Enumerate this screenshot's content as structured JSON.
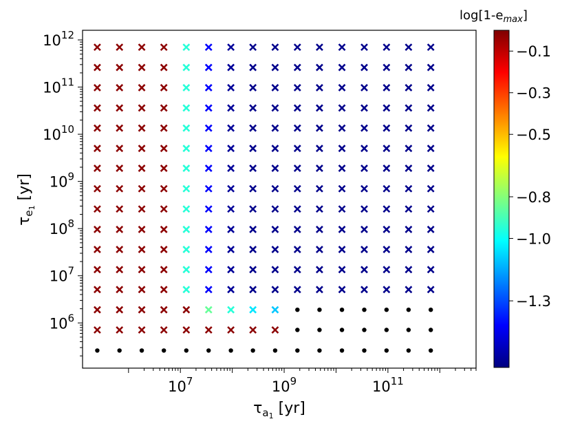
{
  "chart_data": {
    "type": "scatter",
    "xscale": "log",
    "yscale": "log",
    "xlabel": {
      "base": "τ",
      "sub_letter": "a",
      "sub_index": "1",
      "unit": "[yr]"
    },
    "ylabel": {
      "base": "τ",
      "sub_letter": "e",
      "sub_index": "1",
      "unit": "[yr]"
    },
    "xlim": [
      130000.0,
      5000000000000.0
    ],
    "ylim": [
      110000.0,
      1600000000000.0
    ],
    "x_ticks": [
      {
        "value": 10000000.0,
        "base": "10",
        "exp": "7"
      },
      {
        "value": 1000000000.0,
        "base": "10",
        "exp": "9"
      },
      {
        "value": 100000000000.0,
        "base": "10",
        "exp": "11"
      }
    ],
    "y_ticks": [
      {
        "value": 1000000.0,
        "base": "10",
        "exp": "6"
      },
      {
        "value": 10000000.0,
        "base": "10",
        "exp": "7"
      },
      {
        "value": 100000000.0,
        "base": "10",
        "exp": "8"
      },
      {
        "value": 1000000000.0,
        "base": "10",
        "exp": "9"
      },
      {
        "value": 10000000000.0,
        "base": "10",
        "exp": "10"
      },
      {
        "value": 100000000000.0,
        "base": "10",
        "exp": "11"
      },
      {
        "value": 1000000000000.0,
        "base": "10",
        "exp": "12"
      }
    ],
    "x": [
      250000.0,
      670000.0,
      1800000.0,
      4800000.0,
      13000000.0,
      35000000.0,
      94000000.0,
      250000000.0,
      670000000.0,
      1800000000.0,
      4800000000.0,
      13000000000.0,
      35000000000.0,
      94000000000.0,
      250000000000.0,
      670000000000.0
    ],
    "y": [
      260000.0,
      710000.0,
      1900000.0,
      5100000.0,
      13500000.0,
      36000000.0,
      96000000.0,
      260000000.0,
      700000000.0,
      1900000000.0,
      5000000000.0,
      13500000000.0,
      36000000000.0,
      97000000000.0,
      260000000000.0,
      700000000000.0
    ],
    "z_rows": [
      [
        "dot",
        "dot",
        "dot",
        "dot",
        "dot",
        "dot",
        "dot",
        "dot",
        "dot",
        "dot",
        "dot",
        "dot",
        "dot",
        "dot",
        "dot",
        "dot"
      ],
      [
        -0.02,
        -0.02,
        -0.02,
        -0.02,
        -0.02,
        -0.02,
        -0.02,
        -0.02,
        -0.02,
        "dot",
        "dot",
        "dot",
        "dot",
        "dot",
        "dot",
        "dot"
      ],
      [
        -0.02,
        -0.02,
        -0.02,
        -0.02,
        -0.02,
        -0.85,
        -0.95,
        -1.05,
        -1.1,
        "dot",
        "dot",
        "dot",
        "dot",
        "dot",
        "dot",
        "dot"
      ],
      [
        -0.02,
        -0.02,
        -0.02,
        -0.02,
        -0.95,
        -1.42,
        -1.58,
        -1.6,
        -1.6,
        -1.6,
        -1.6,
        -1.6,
        -1.6,
        -1.6,
        -1.6,
        -1.6
      ],
      [
        -0.02,
        -0.02,
        -0.02,
        -0.02,
        -0.95,
        -1.42,
        -1.58,
        -1.6,
        -1.6,
        -1.6,
        -1.6,
        -1.6,
        -1.6,
        -1.6,
        -1.6,
        -1.6
      ],
      [
        -0.02,
        -0.02,
        -0.02,
        -0.02,
        -0.95,
        -1.42,
        -1.58,
        -1.6,
        -1.6,
        -1.6,
        -1.6,
        -1.6,
        -1.6,
        -1.6,
        -1.6,
        -1.6
      ],
      [
        -0.02,
        -0.02,
        -0.02,
        -0.02,
        -0.95,
        -1.42,
        -1.58,
        -1.6,
        -1.6,
        -1.6,
        -1.6,
        -1.6,
        -1.6,
        -1.6,
        -1.6,
        -1.6
      ],
      [
        -0.02,
        -0.02,
        -0.02,
        -0.02,
        -0.95,
        -1.42,
        -1.58,
        -1.6,
        -1.6,
        -1.6,
        -1.6,
        -1.6,
        -1.6,
        -1.6,
        -1.6,
        -1.6
      ],
      [
        -0.02,
        -0.02,
        -0.02,
        -0.02,
        -0.95,
        -1.42,
        -1.58,
        -1.6,
        -1.6,
        -1.6,
        -1.6,
        -1.6,
        -1.6,
        -1.6,
        -1.6,
        -1.6
      ],
      [
        -0.02,
        -0.02,
        -0.02,
        -0.02,
        -0.95,
        -1.42,
        -1.58,
        -1.6,
        -1.6,
        -1.6,
        -1.6,
        -1.6,
        -1.6,
        -1.6,
        -1.6,
        -1.6
      ],
      [
        -0.02,
        -0.02,
        -0.02,
        -0.02,
        -0.95,
        -1.42,
        -1.58,
        -1.6,
        -1.6,
        -1.6,
        -1.6,
        -1.6,
        -1.6,
        -1.6,
        -1.6,
        -1.6
      ],
      [
        -0.02,
        -0.02,
        -0.02,
        -0.02,
        -0.95,
        -1.42,
        -1.58,
        -1.6,
        -1.6,
        -1.6,
        -1.6,
        -1.6,
        -1.6,
        -1.6,
        -1.6,
        -1.6
      ],
      [
        -0.02,
        -0.02,
        -0.02,
        -0.02,
        -0.95,
        -1.42,
        -1.58,
        -1.6,
        -1.6,
        -1.6,
        -1.6,
        -1.6,
        -1.6,
        -1.6,
        -1.6,
        -1.6
      ],
      [
        -0.02,
        -0.02,
        -0.02,
        -0.02,
        -0.95,
        -1.42,
        -1.58,
        -1.6,
        -1.6,
        -1.6,
        -1.6,
        -1.6,
        -1.6,
        -1.6,
        -1.6,
        -1.6
      ],
      [
        -0.02,
        -0.02,
        -0.02,
        -0.02,
        -0.95,
        -1.42,
        -1.58,
        -1.6,
        -1.6,
        -1.6,
        -1.6,
        -1.6,
        -1.6,
        -1.6,
        -1.6,
        -1.6
      ],
      [
        -0.02,
        -0.02,
        -0.02,
        -0.02,
        -0.95,
        -1.42,
        -1.58,
        -1.6,
        -1.6,
        -1.6,
        -1.6,
        -1.6,
        -1.6,
        -1.6,
        -1.6,
        -1.6
      ]
    ],
    "marker_dot_color": "#000000",
    "colorbar": {
      "label_main": "log[1-e",
      "label_sub": "max",
      "label_end": "]",
      "colormap": "jet",
      "range": [
        -1.62,
        0.0
      ],
      "ticks": [
        {
          "value": -0.1,
          "label": "−0.1"
        },
        {
          "value": -0.3,
          "label": "−0.3"
        },
        {
          "value": -0.5,
          "label": "−0.5"
        },
        {
          "value": -0.8,
          "label": "−0.8"
        },
        {
          "value": -1.0,
          "label": "−1.0"
        },
        {
          "value": -1.3,
          "label": "−1.3"
        }
      ]
    },
    "grid": false,
    "legend": "none"
  }
}
